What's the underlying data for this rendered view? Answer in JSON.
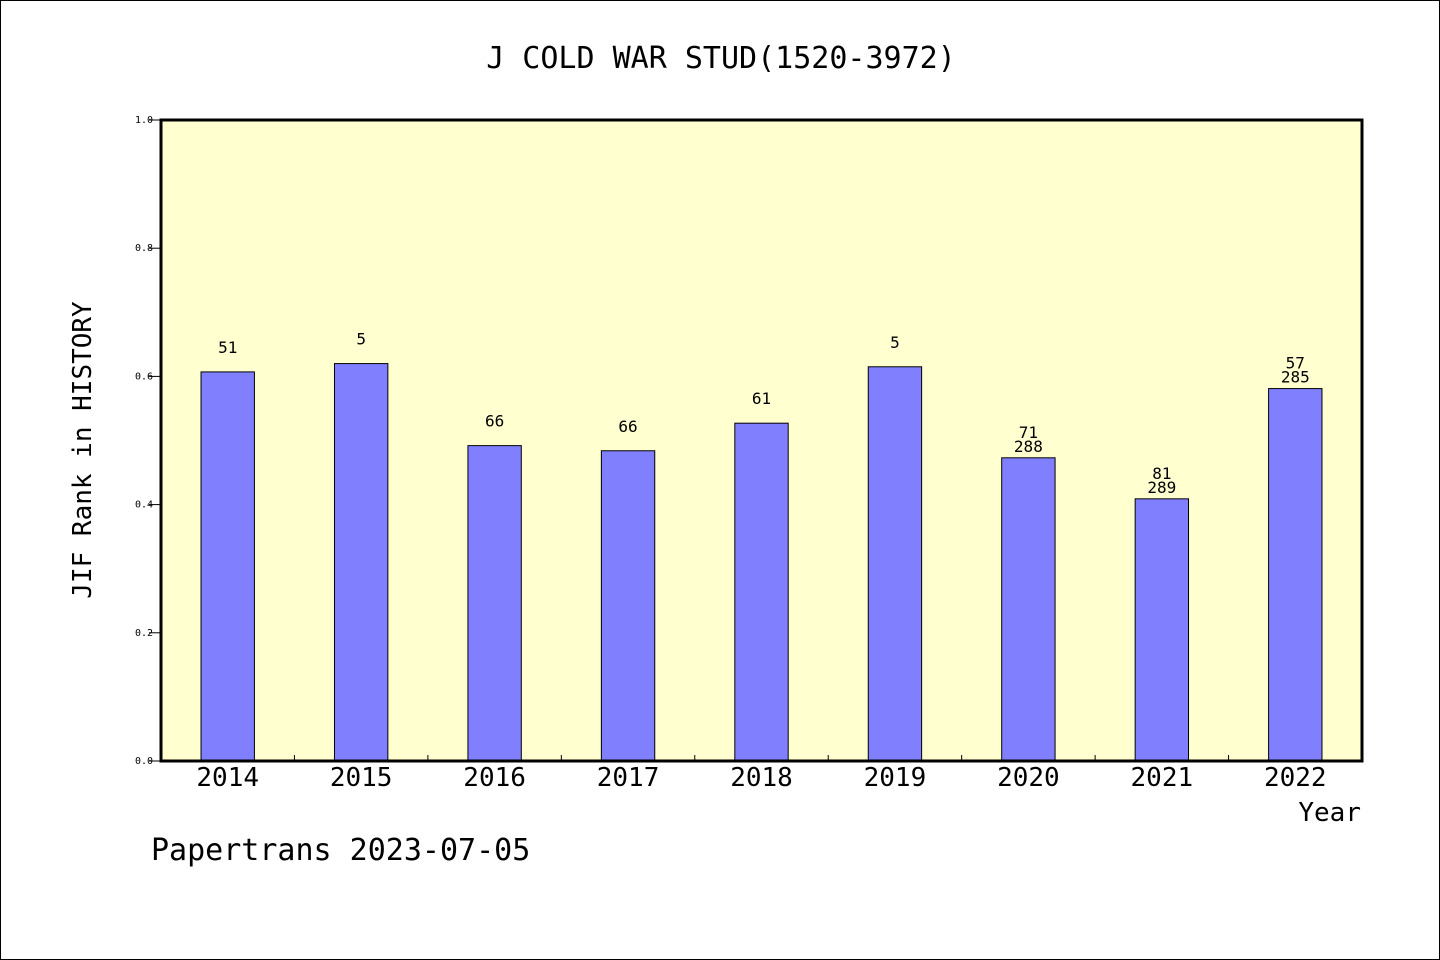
{
  "footer": {
    "note": "Papertrans 2023-07-05"
  },
  "chart_data": {
    "type": "bar",
    "title": "J COLD WAR STUD(1520-3972)",
    "xlabel": "Year",
    "ylabel": "JIF Rank in HISTORY",
    "ylim": [
      0,
      1.0
    ],
    "yticks": [
      "0.0",
      "0.2",
      "0.4",
      "0.6",
      "0.8",
      "1.0"
    ],
    "ytick_values": [
      0.0,
      0.2,
      0.4,
      0.6,
      0.8,
      1.0
    ],
    "categories": [
      "2014",
      "2015",
      "2016",
      "2017",
      "2018",
      "2019",
      "2020",
      "2021",
      "2022"
    ],
    "values": [
      0.607,
      0.62,
      0.492,
      0.484,
      0.527,
      0.615,
      0.473,
      0.409,
      0.581
    ],
    "bar_labels": [
      [
        "51"
      ],
      [
        "5"
      ],
      [
        "66"
      ],
      [
        "66"
      ],
      [
        "61"
      ],
      [
        "5"
      ],
      [
        "71",
        "288"
      ],
      [
        "81",
        "289"
      ],
      [
        "57",
        "285"
      ]
    ],
    "bar_color": "#8080ff",
    "plot_background": "#ffffd0",
    "grid": false,
    "legend": "none"
  }
}
